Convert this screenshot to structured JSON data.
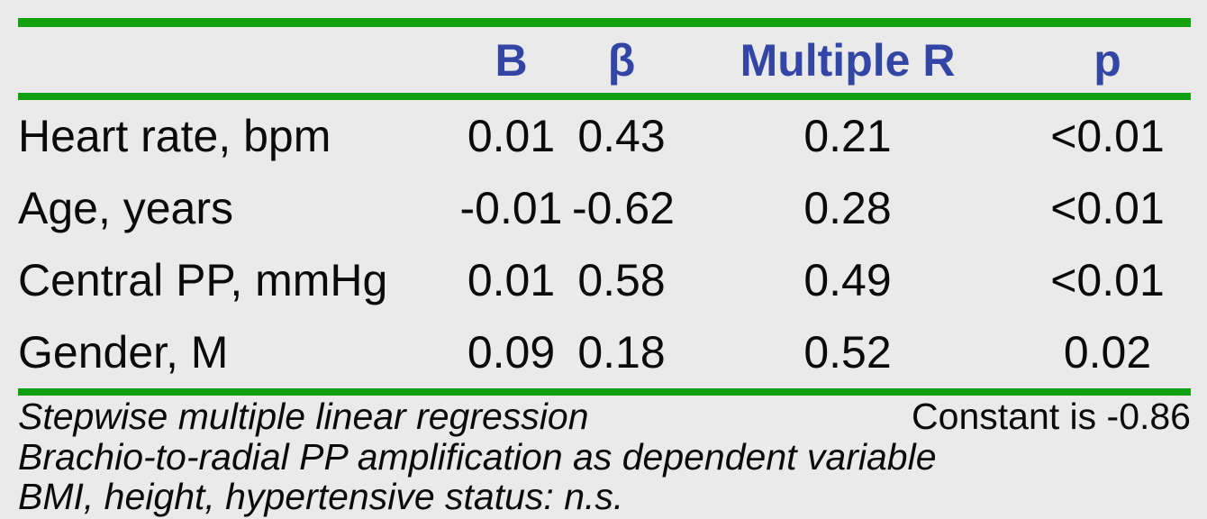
{
  "colors": {
    "background": "#EAEAEA",
    "rule_green": "#10A010",
    "header_blue": "#3346A5",
    "text_black": "#0A0A0A"
  },
  "table": {
    "headers": {
      "label": "",
      "b": "B",
      "beta": "β",
      "multiple_r": "Multiple R",
      "p": "p"
    },
    "rows": [
      {
        "label": "Heart rate, bpm",
        "values": [
          "0.01",
          "0.43",
          "0.21",
          "<0.01"
        ]
      },
      {
        "label": "Age, years",
        "values": [
          "-0.01",
          "-0.62",
          "0.28",
          "<0.01"
        ]
      },
      {
        "label": "Central PP, mmHg",
        "values": [
          "0.01",
          "0.58",
          "0.49",
          "<0.01"
        ]
      },
      {
        "label": "Gender, M",
        "values": [
          "0.09",
          "0.18",
          "0.52",
          "0.02"
        ]
      }
    ]
  },
  "footnotes": {
    "method": "Stepwise multiple linear regression",
    "constant": "Constant is -0.86",
    "dependent_variable": "Brachio-to-radial PP amplification as dependent variable",
    "not_significant": "BMI, height, hypertensive status: n.s."
  }
}
